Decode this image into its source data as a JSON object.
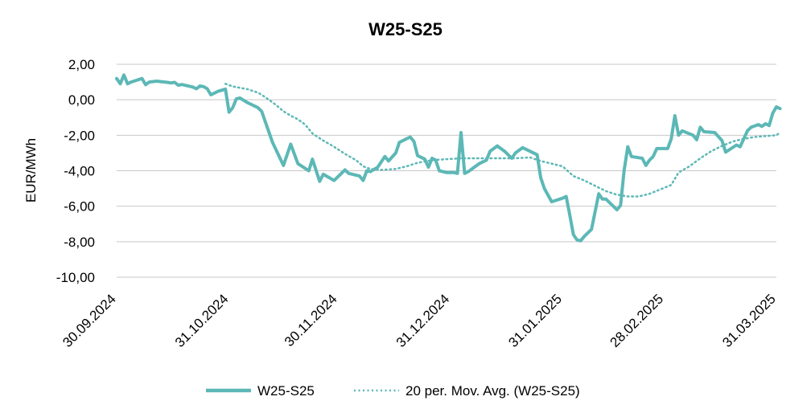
{
  "chart_data": {
    "type": "line",
    "title": "W25-S25",
    "ylabel": "EUR/MWh",
    "xlabel": "",
    "ylim": [
      -10,
      2
    ],
    "yticks": [
      "2,00",
      "0,00",
      "-2,00",
      "-4,00",
      "-6,00",
      "-8,00",
      "-10,00"
    ],
    "ytick_values": [
      2,
      0,
      -2,
      -4,
      -6,
      -8,
      -10
    ],
    "xlim": [
      "2024-09-30",
      "2025-03-31"
    ],
    "xticks": [
      "30.09.2024",
      "31.10.2024",
      "30.11.2024",
      "31.12.2024",
      "31.01.2025",
      "28.02.2025",
      "31.03.2025"
    ],
    "xtick_dates": [
      "2024-09-30",
      "2024-10-31",
      "2024-11-30",
      "2024-12-31",
      "2025-01-31",
      "2025-02-28",
      "2025-03-31"
    ],
    "grid": true,
    "legend_position": "bottom",
    "colors": {
      "series": "#5cb8b6",
      "grid": "#c8c8c8"
    },
    "series": [
      {
        "name": "W25-S25",
        "style": "solid",
        "points": [
          [
            "2024-09-30",
            1.2
          ],
          [
            "2024-10-01",
            0.9
          ],
          [
            "2024-10-02",
            1.4
          ],
          [
            "2024-10-03",
            0.9
          ],
          [
            "2024-10-04",
            1.0
          ],
          [
            "2024-10-07",
            1.2
          ],
          [
            "2024-10-08",
            0.85
          ],
          [
            "2024-10-09",
            1.0
          ],
          [
            "2024-10-11",
            1.05
          ],
          [
            "2024-10-14",
            0.98
          ],
          [
            "2024-10-15",
            0.95
          ],
          [
            "2024-10-16",
            0.98
          ],
          [
            "2024-10-17",
            0.82
          ],
          [
            "2024-10-18",
            0.86
          ],
          [
            "2024-10-21",
            0.72
          ],
          [
            "2024-10-22",
            0.62
          ],
          [
            "2024-10-23",
            0.78
          ],
          [
            "2024-10-24",
            0.74
          ],
          [
            "2024-10-25",
            0.62
          ],
          [
            "2024-10-26",
            0.28
          ],
          [
            "2024-10-28",
            0.48
          ],
          [
            "2024-10-30",
            0.6
          ],
          [
            "2024-10-31",
            -0.7
          ],
          [
            "2024-11-01",
            -0.45
          ],
          [
            "2024-11-02",
            0.05
          ],
          [
            "2024-11-03",
            0.1
          ],
          [
            "2024-11-05",
            -0.15
          ],
          [
            "2024-11-08",
            -0.45
          ],
          [
            "2024-11-09",
            -0.65
          ],
          [
            "2024-11-12",
            -2.4
          ],
          [
            "2024-11-15",
            -3.7
          ],
          [
            "2024-11-17",
            -2.5
          ],
          [
            "2024-11-19",
            -3.6
          ],
          [
            "2024-11-22",
            -4.0
          ],
          [
            "2024-11-23",
            -3.35
          ],
          [
            "2024-11-25",
            -4.6
          ],
          [
            "2024-11-26",
            -4.2
          ],
          [
            "2024-11-29",
            -4.55
          ],
          [
            "2024-11-30",
            -4.35
          ],
          [
            "2024-12-02",
            -3.95
          ],
          [
            "2024-12-03",
            -4.15
          ],
          [
            "2024-12-06",
            -4.3
          ],
          [
            "2024-12-07",
            -4.55
          ],
          [
            "2024-12-08",
            -4.0
          ],
          [
            "2024-12-09",
            -4.05
          ],
          [
            "2024-12-11",
            -3.8
          ],
          [
            "2024-12-13",
            -3.2
          ],
          [
            "2024-12-14",
            -3.45
          ],
          [
            "2024-12-16",
            -3.0
          ],
          [
            "2024-12-17",
            -2.4
          ],
          [
            "2024-12-20",
            -2.1
          ],
          [
            "2024-12-21",
            -2.35
          ],
          [
            "2024-12-22",
            -3.15
          ],
          [
            "2024-12-24",
            -3.35
          ],
          [
            "2024-12-25",
            -3.8
          ],
          [
            "2024-12-26",
            -3.3
          ],
          [
            "2024-12-27",
            -3.4
          ],
          [
            "2024-12-28",
            -4.0
          ],
          [
            "2024-12-30",
            -4.1
          ],
          [
            "2025-01-01",
            -4.1
          ],
          [
            "2025-01-02",
            -4.15
          ],
          [
            "2025-01-03",
            -1.85
          ],
          [
            "2025-01-04",
            -4.15
          ],
          [
            "2025-01-05",
            -4.05
          ],
          [
            "2025-01-08",
            -3.6
          ],
          [
            "2025-01-10",
            -3.4
          ],
          [
            "2025-01-11",
            -2.9
          ],
          [
            "2025-01-13",
            -2.6
          ],
          [
            "2025-01-15",
            -2.9
          ],
          [
            "2025-01-17",
            -3.3
          ],
          [
            "2025-01-18",
            -3.0
          ],
          [
            "2025-01-20",
            -2.7
          ],
          [
            "2025-01-22",
            -2.9
          ],
          [
            "2025-01-24",
            -3.1
          ],
          [
            "2025-01-25",
            -4.4
          ],
          [
            "2025-01-26",
            -5.0
          ],
          [
            "2025-01-28",
            -5.75
          ],
          [
            "2025-01-31",
            -5.55
          ],
          [
            "2025-02-01",
            -5.45
          ],
          [
            "2025-02-02",
            -6.5
          ],
          [
            "2025-02-03",
            -7.6
          ],
          [
            "2025-02-04",
            -7.9
          ],
          [
            "2025-02-05",
            -7.95
          ],
          [
            "2025-02-06",
            -7.7
          ],
          [
            "2025-02-08",
            -7.3
          ],
          [
            "2025-02-10",
            -5.3
          ],
          [
            "2025-02-11",
            -5.6
          ],
          [
            "2025-02-12",
            -5.6
          ],
          [
            "2025-02-15",
            -6.2
          ],
          [
            "2025-02-16",
            -5.95
          ],
          [
            "2025-02-17",
            -3.95
          ],
          [
            "2025-02-18",
            -2.65
          ],
          [
            "2025-02-19",
            -3.2
          ],
          [
            "2025-02-22",
            -3.3
          ],
          [
            "2025-02-23",
            -3.7
          ],
          [
            "2025-02-24",
            -3.4
          ],
          [
            "2025-02-25",
            -3.2
          ],
          [
            "2025-02-26",
            -2.75
          ],
          [
            "2025-03-01",
            -2.75
          ],
          [
            "2025-03-02",
            -2.2
          ],
          [
            "2025-03-03",
            -0.9
          ],
          [
            "2025-03-04",
            -2.0
          ],
          [
            "2025-03-05",
            -1.75
          ],
          [
            "2025-03-08",
            -2.0
          ],
          [
            "2025-03-09",
            -2.25
          ],
          [
            "2025-03-10",
            -1.55
          ],
          [
            "2025-03-11",
            -1.8
          ],
          [
            "2025-03-14",
            -1.85
          ],
          [
            "2025-03-16",
            -2.3
          ],
          [
            "2025-03-17",
            -2.95
          ],
          [
            "2025-03-20",
            -2.55
          ],
          [
            "2025-03-21",
            -2.65
          ],
          [
            "2025-03-23",
            -1.75
          ],
          [
            "2025-03-24",
            -1.55
          ],
          [
            "2025-03-26",
            -1.4
          ],
          [
            "2025-03-27",
            -1.5
          ],
          [
            "2025-03-28",
            -1.35
          ],
          [
            "2025-03-29",
            -1.45
          ],
          [
            "2025-03-30",
            -0.75
          ],
          [
            "2025-03-31",
            -0.4
          ],
          [
            "2025-04-01",
            -0.5
          ]
        ]
      },
      {
        "name": "20 per. Mov. Avg. (W25-S25)",
        "style": "dotted",
        "points": [
          [
            "2024-10-30",
            0.9
          ],
          [
            "2024-11-01",
            0.75
          ],
          [
            "2024-11-05",
            0.6
          ],
          [
            "2024-11-08",
            0.4
          ],
          [
            "2024-11-10",
            0.15
          ],
          [
            "2024-11-13",
            -0.3
          ],
          [
            "2024-11-15",
            -0.65
          ],
          [
            "2024-11-17",
            -0.9
          ],
          [
            "2024-11-19",
            -1.1
          ],
          [
            "2024-11-21",
            -1.4
          ],
          [
            "2024-11-23",
            -1.9
          ],
          [
            "2024-11-26",
            -2.3
          ],
          [
            "2024-11-29",
            -2.65
          ],
          [
            "2024-12-02",
            -3.05
          ],
          [
            "2024-12-05",
            -3.4
          ],
          [
            "2024-12-07",
            -3.75
          ],
          [
            "2024-12-09",
            -3.9
          ],
          [
            "2024-12-12",
            -3.95
          ],
          [
            "2024-12-16",
            -3.9
          ],
          [
            "2024-12-19",
            -3.75
          ],
          [
            "2024-12-22",
            -3.55
          ],
          [
            "2024-12-26",
            -3.4
          ],
          [
            "2024-12-30",
            -3.35
          ],
          [
            "2025-01-03",
            -3.3
          ],
          [
            "2025-01-08",
            -3.3
          ],
          [
            "2025-01-13",
            -3.3
          ],
          [
            "2025-01-18",
            -3.3
          ],
          [
            "2025-01-22",
            -3.25
          ],
          [
            "2025-01-25",
            -3.45
          ],
          [
            "2025-01-28",
            -3.6
          ],
          [
            "2025-01-31",
            -3.75
          ],
          [
            "2025-02-03",
            -4.3
          ],
          [
            "2025-02-06",
            -4.55
          ],
          [
            "2025-02-09",
            -4.85
          ],
          [
            "2025-02-12",
            -5.15
          ],
          [
            "2025-02-15",
            -5.35
          ],
          [
            "2025-02-18",
            -5.45
          ],
          [
            "2025-02-21",
            -5.45
          ],
          [
            "2025-02-24",
            -5.3
          ],
          [
            "2025-02-27",
            -5.05
          ],
          [
            "2025-03-02",
            -4.8
          ],
          [
            "2025-03-04",
            -4.1
          ],
          [
            "2025-03-07",
            -3.75
          ],
          [
            "2025-03-10",
            -3.3
          ],
          [
            "2025-03-13",
            -2.9
          ],
          [
            "2025-03-16",
            -2.6
          ],
          [
            "2025-03-19",
            -2.35
          ],
          [
            "2025-03-22",
            -2.2
          ],
          [
            "2025-03-25",
            -2.1
          ],
          [
            "2025-03-28",
            -2.05
          ],
          [
            "2025-03-31",
            -2.0
          ],
          [
            "2025-04-01",
            -1.85
          ]
        ]
      }
    ]
  }
}
